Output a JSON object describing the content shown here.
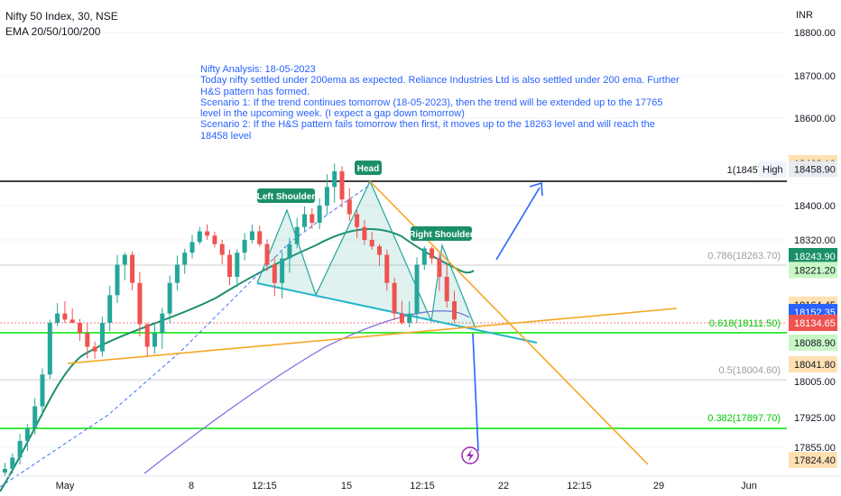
{
  "header": {
    "symbol_line": "Nifty 50 Index, 30, NSE",
    "indicator_line": "EMA 20/50/100/200",
    "currency": "INR"
  },
  "annotation": {
    "lines": [
      "Nifty Analysis: 18-05-2023",
      "Today nifty settled under 200ema as expected.  Reliance Industries Ltd is also settled under 200 ema. Further",
      "H&S pattern has formed.",
      "Scenario 1: If the trend continues tomorrow (18-05-2023), then the trend will be extended up to the 17765",
      "level in the upcoming week. (I expect a gap down tomorrow)",
      "Scenario 2: If the H&S pattern fails tomorrow then first, it moves up to the 18263 level and will reach the",
      "18458 level"
    ]
  },
  "pattern_labels": {
    "head": "Head",
    "left_shoulder": "Left Shoulder",
    "right_shoulder": "Right Shoulder"
  },
  "fib_labels": {
    "level_1": "1(18457.60)",
    "level_786": "0.786(18263.70)",
    "level_618": "0.618(18111.50)",
    "level_5": "0.5(18004.60)",
    "level_382": "0.382(17897.70)"
  },
  "colors": {
    "candle_up": "#26a69a",
    "candle_down": "#ef5350",
    "ema_fast": "#1b8f6a",
    "ema_slow": "#7b6be0",
    "trendline": "#f5a623",
    "arrow": "#2962ff",
    "neckline": "#26b5c8",
    "fib_green": "#00e600",
    "text_blue": "#2962ff"
  },
  "chart_data": {
    "type": "candlestick",
    "title": "Nifty 50 Index, 30, NSE",
    "indicators": [
      "EMA 20/50/100/200"
    ],
    "price_axis": {
      "ticks": [
        18800,
        18700,
        18600,
        18400,
        18320,
        18005,
        17925,
        17855
      ],
      "range": [
        17800,
        18850
      ],
      "currency": "INR"
    },
    "time_axis": {
      "ticks": [
        "May",
        "8",
        "12:15",
        "15",
        "12:15",
        "22",
        "12:15",
        "29",
        "Jun"
      ]
    },
    "price_badges": [
      {
        "label": "18468.10",
        "value": 18468.1,
        "style": "orange"
      },
      {
        "label": "18458.90",
        "value": 18458.9,
        "style": "gray",
        "tag": "High"
      },
      {
        "label": "18243.90",
        "value": 18243.9,
        "style": "teal"
      },
      {
        "label": "18221.20",
        "value": 18221.2,
        "style": "green"
      },
      {
        "label": "18164.45",
        "value": 18164.45,
        "style": "orange"
      },
      {
        "label": "18152.35",
        "value": 18152.35,
        "style": "blue"
      },
      {
        "label": "18134.65",
        "value": 18134.65,
        "style": "red"
      },
      {
        "label": "18088.90",
        "value": 18088.9,
        "style": "green"
      },
      {
        "label": "18041.80",
        "value": 18041.8,
        "style": "orange"
      },
      {
        "label": "17824.40",
        "value": 17824.4,
        "style": "orange"
      }
    ],
    "fibonacci": [
      {
        "ratio": 1,
        "value": 18457.6
      },
      {
        "ratio": 0.786,
        "value": 18263.7
      },
      {
        "ratio": 0.618,
        "value": 18111.5
      },
      {
        "ratio": 0.5,
        "value": 18004.6
      },
      {
        "ratio": 0.382,
        "value": 17897.7
      }
    ],
    "pattern": "Head and Shoulders",
    "close_path": [
      17800,
      17830,
      17870,
      17900,
      17950,
      18020,
      18120,
      18150,
      18140,
      18130,
      18100,
      18080,
      18070,
      18120,
      18180,
      18230,
      18250,
      18200,
      18110,
      18080,
      18100,
      18150,
      18200,
      18230,
      18260,
      18310,
      18340,
      18330,
      18300,
      18250,
      18210,
      18260,
      18320,
      18340,
      18300,
      18230,
      18200,
      18240,
      18300,
      18350,
      18380,
      18360,
      18400,
      18430,
      18455,
      18410,
      18380,
      18350,
      18320,
      18290,
      18250,
      18200,
      18150,
      18130,
      18150,
      18230,
      18280,
      18240,
      18210,
      18170,
      18140
    ]
  }
}
